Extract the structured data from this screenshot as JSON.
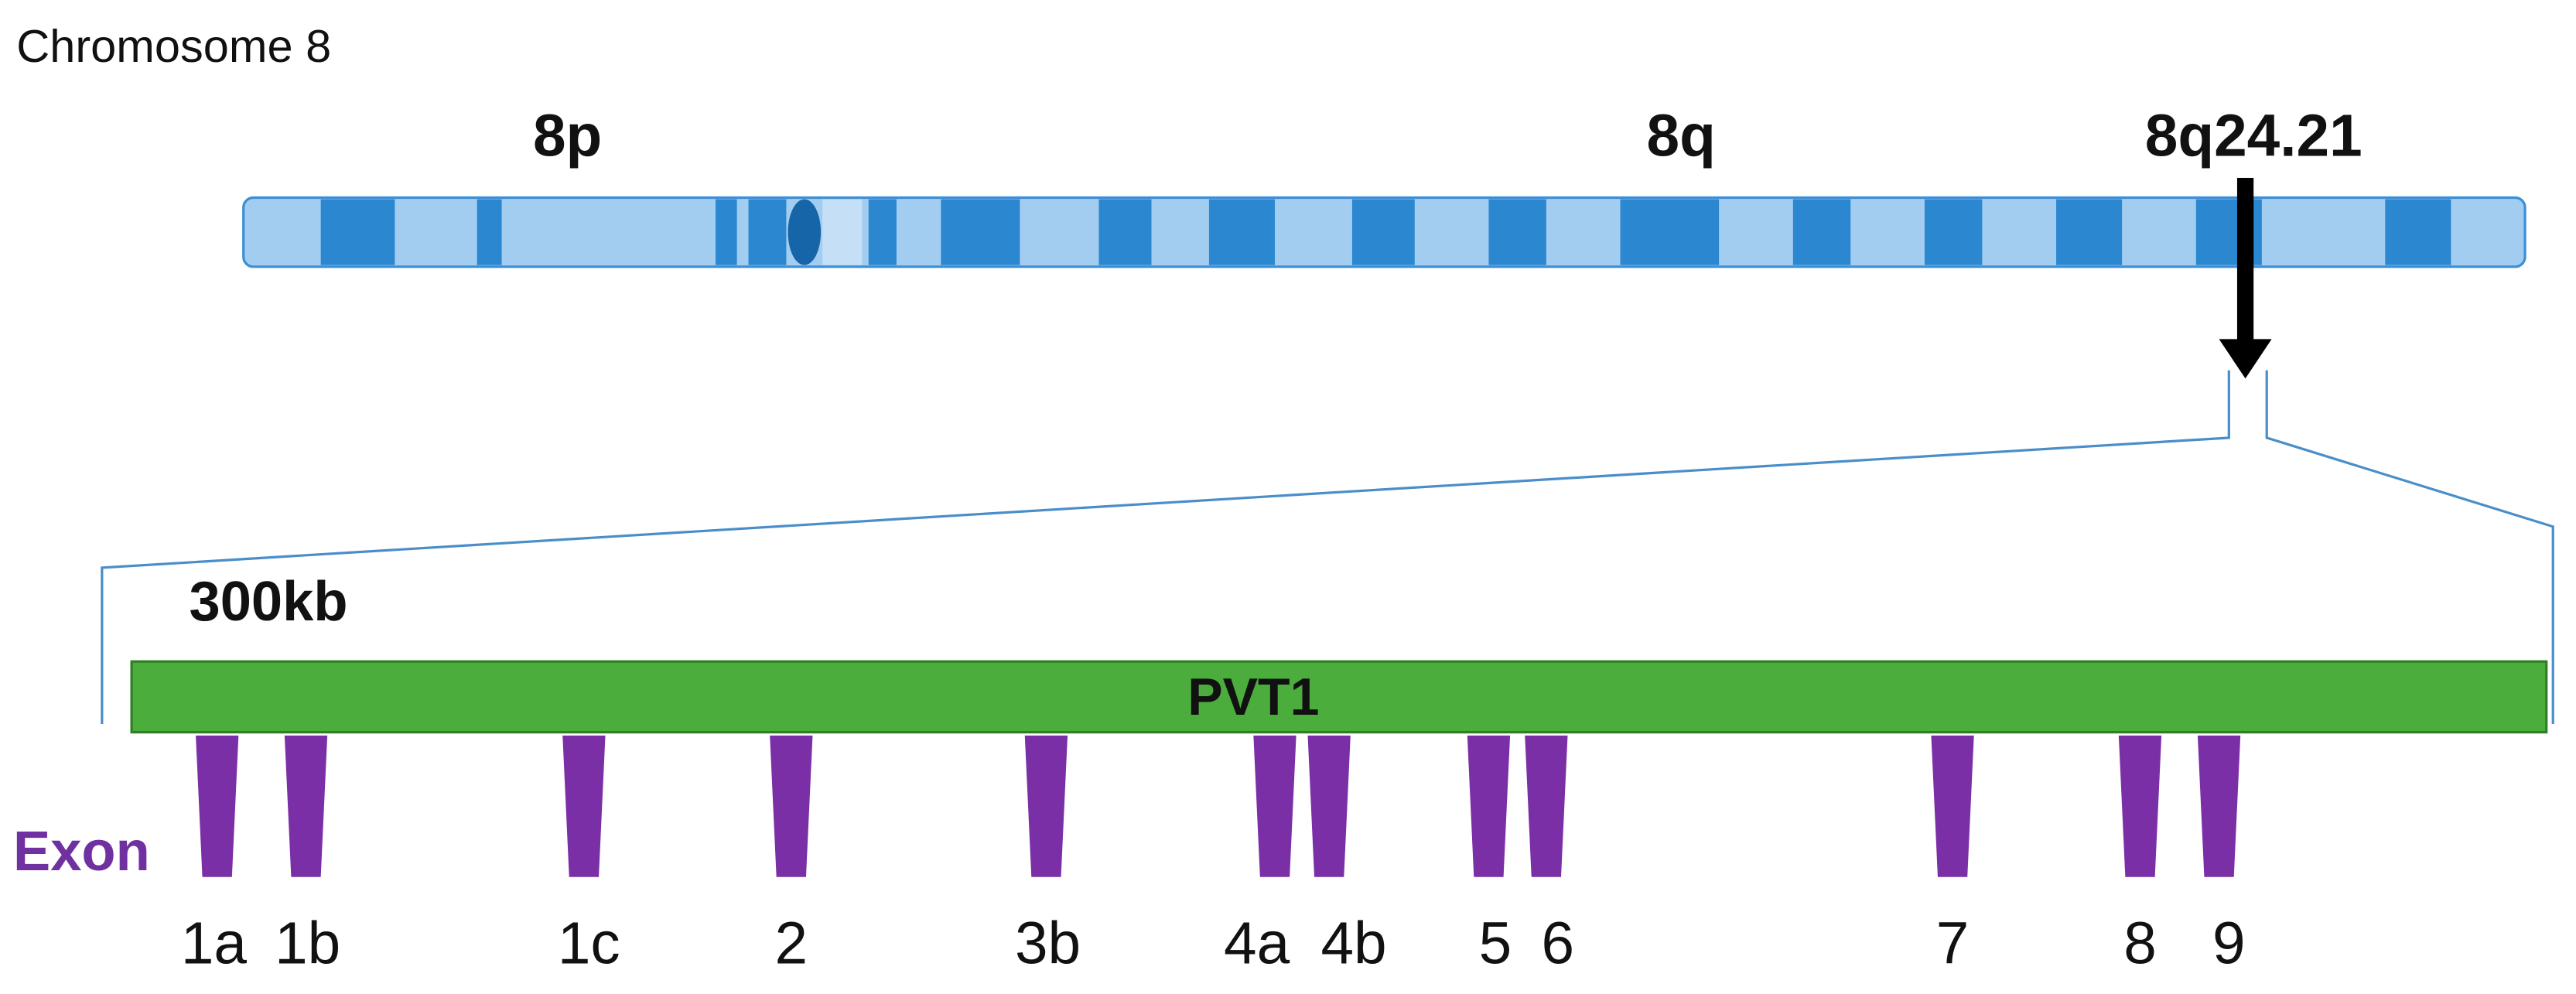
{
  "header": {
    "title": "Chromosome 8"
  },
  "chromosome": {
    "arm_p": "8p",
    "arm_q": "8q",
    "locus": "8q24.21"
  },
  "gene": {
    "size": "300kb",
    "name": "PVT1"
  },
  "exons": {
    "label": "Exon",
    "names": [
      "1a",
      "1b",
      "1c",
      "2",
      "3b",
      "4a",
      "4b",
      "5",
      "6",
      "7",
      "8",
      "9"
    ]
  }
}
